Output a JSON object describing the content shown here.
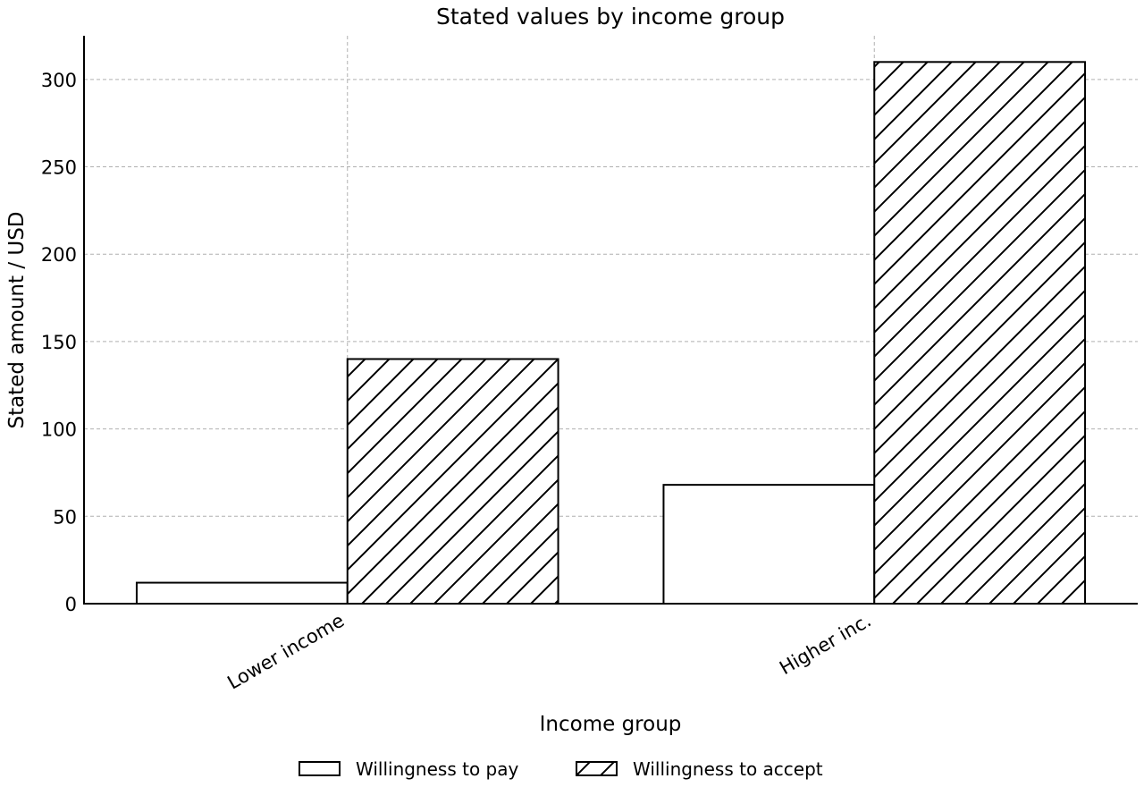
{
  "chart_data": {
    "type": "bar",
    "title": "Stated values by income group",
    "xlabel": "Income group",
    "ylabel": "Stated amount / USD",
    "categories": [
      "Lower income",
      "Higher inc."
    ],
    "series": [
      {
        "name": "Willingness to pay",
        "values": [
          12,
          68
        ],
        "fill": "#ffffff",
        "hatch": "none"
      },
      {
        "name": "Willingness to accept",
        "values": [
          140,
          310
        ],
        "fill": "#ffffff",
        "hatch": "diagonal"
      }
    ],
    "ylim": [
      0,
      325
    ],
    "yticks": [
      0,
      50,
      100,
      150,
      200,
      250,
      300
    ],
    "grid": true,
    "legend_position": "bottom-center",
    "colors": {
      "bar_edge": "#000000",
      "grid": "#b0b0b0",
      "axis": "#000000"
    }
  }
}
